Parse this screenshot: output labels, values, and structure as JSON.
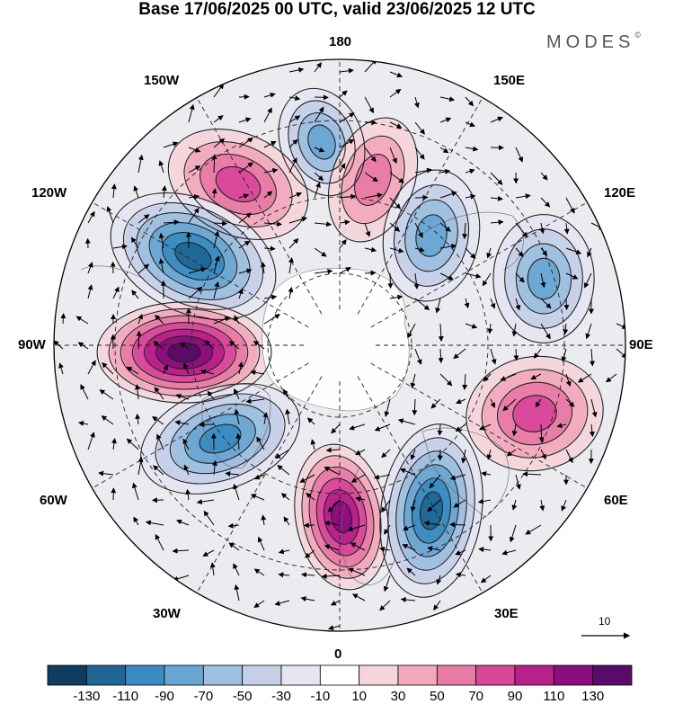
{
  "title": "Base 17/06/2025 00 UTC, valid 23/06/2025 12 UTC",
  "brand": {
    "name": "MODES",
    "mark": "©"
  },
  "longitude_labels": {
    "top": "180",
    "bottom": "0",
    "left": "90W",
    "right": "90E",
    "upper_left_outer": "150W",
    "upper_left_inner": "120W",
    "upper_right_outer": "150E",
    "upper_right_inner": "120E",
    "lower_left_inner": "60W",
    "lower_left_outer": "30W",
    "lower_right_inner": "60E",
    "lower_right_outer": "30E"
  },
  "vector_reference": {
    "label": "10"
  },
  "colorbar": {
    "ticks": [
      "-130",
      "-110",
      "-90",
      "-70",
      "-50",
      "-30",
      "-10",
      "10",
      "30",
      "50",
      "70",
      "90",
      "110",
      "130"
    ],
    "colors": [
      "#0f3d62",
      "#1f6696",
      "#3b8bc2",
      "#6aa6d3",
      "#9dbfe0",
      "#c5d0e8",
      "#e6e6f2",
      "#ffffff",
      "#f6d5da",
      "#f2a9bd",
      "#e97aa6",
      "#d9479a",
      "#b8208a",
      "#8c0e7e",
      "#5a0a6a"
    ]
  },
  "anomaly_centers": [
    {
      "name": "blue-north-pacific-top",
      "value": -70
    },
    {
      "name": "pink-upper-left-a",
      "value": 70
    },
    {
      "name": "pink-top-center",
      "value": 50
    },
    {
      "name": "blue-upper-left-big",
      "value": -110
    },
    {
      "name": "blue-upper-right",
      "value": -70
    },
    {
      "name": "blue-right",
      "value": -70
    },
    {
      "name": "magenta-left",
      "value": 130
    },
    {
      "name": "pink-right",
      "value": 70
    },
    {
      "name": "blue-lower-left",
      "value": -90
    },
    {
      "name": "pink-lower-center",
      "value": 110
    },
    {
      "name": "blue-lower-right",
      "value": -110
    }
  ]
}
